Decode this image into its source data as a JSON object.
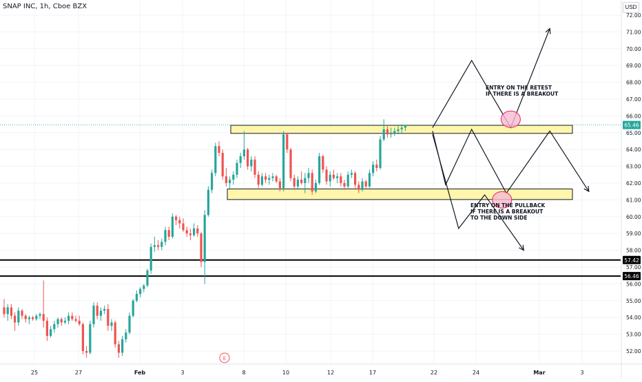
{
  "header": {
    "symbol_title": "SNAP INC, 1h, Cboe BZX",
    "currency": "USD"
  },
  "chart_data": {
    "type": "candlestick",
    "y_axis": {
      "ticks": [
        "72.00",
        "71.00",
        "70.00",
        "69.00",
        "68.00",
        "67.00",
        "66.00",
        "65.00",
        "64.00",
        "63.00",
        "62.00",
        "61.00",
        "60.00",
        "59.00",
        "58.00",
        "57.00",
        "56.00",
        "55.00",
        "54.00",
        "53.00",
        "52.00"
      ],
      "range": [
        51.2,
        72.5
      ]
    },
    "x_axis": {
      "ticks": [
        {
          "label": "25",
          "bold": false
        },
        {
          "label": "27",
          "bold": false
        },
        {
          "label": "Feb",
          "bold": true
        },
        {
          "label": "3",
          "bold": false
        },
        {
          "label": "8",
          "bold": false
        },
        {
          "label": "10",
          "bold": false
        },
        {
          "label": "12",
          "bold": false
        },
        {
          "label": "17",
          "bold": false
        },
        {
          "label": "22",
          "bold": false
        },
        {
          "label": "24",
          "bold": false
        },
        {
          "label": "Mar",
          "bold": true
        },
        {
          "label": "3",
          "bold": false
        }
      ]
    },
    "price_labels": [
      {
        "value": "65.46",
        "price": 65.46,
        "color": "#26a69a",
        "style": "dotted"
      },
      {
        "value": "57.42",
        "price": 57.42,
        "color": "#000000",
        "style": "solid"
      },
      {
        "value": "56.46",
        "price": 56.46,
        "color": "#000000",
        "style": "solid"
      }
    ],
    "zones": [
      {
        "from": 64.96,
        "to": 65.44,
        "fill": "#fff59d"
      },
      {
        "from": 61.02,
        "to": 61.65,
        "fill": "#fff59d"
      }
    ],
    "event_marker": "E",
    "annotations": [
      "ENTRY ON THE RETEST\nIF THERE IS A BREAKOUT",
      "ENTRY ON THE PULLBACK\nIF THERE IS A BREAKOUT\nTO THE DOWN SIDE"
    ],
    "projection_paths": [
      [
        [
          64.9,
          65.3
        ],
        [
          65.8,
          69.3
        ],
        [
          66.7,
          65.3
        ],
        [
          67.6,
          71.2
        ]
      ],
      [
        [
          64.9,
          65.1
        ],
        [
          65.2,
          61.9
        ],
        [
          65.8,
          65.2
        ],
        [
          66.6,
          61.4
        ],
        [
          67.6,
          65.1
        ],
        [
          68.5,
          61.5
        ]
      ],
      [
        [
          64.9,
          64.9
        ],
        [
          65.5,
          59.3
        ],
        [
          66.1,
          61.3
        ],
        [
          67.0,
          58.0
        ]
      ]
    ],
    "highlight_circles": [
      {
        "x": 66.7,
        "y": 65.8
      },
      {
        "x": 66.5,
        "y": 61.0
      }
    ],
    "candles": [
      [
        54.6,
        55.1,
        54.0,
        54.2
      ],
      [
        54.2,
        54.8,
        53.8,
        54.6
      ],
      [
        54.6,
        54.8,
        53.9,
        54.1
      ],
      [
        54.1,
        54.3,
        53.2,
        53.7
      ],
      [
        53.7,
        54.6,
        53.5,
        54.4
      ],
      [
        54.4,
        54.5,
        53.9,
        54.1
      ],
      [
        54.1,
        54.2,
        53.7,
        53.9
      ],
      [
        53.9,
        54.1,
        53.6,
        54.0
      ],
      [
        54.0,
        54.1,
        53.8,
        53.9
      ],
      [
        53.9,
        54.2,
        53.8,
        54.1
      ],
      [
        54.1,
        54.3,
        53.9,
        54.2
      ],
      [
        54.2,
        56.2,
        53.4,
        53.8
      ],
      [
        53.8,
        54.0,
        52.6,
        52.9
      ],
      [
        52.9,
        53.5,
        52.8,
        53.3
      ],
      [
        53.3,
        53.8,
        53.1,
        53.6
      ],
      [
        53.6,
        54.0,
        53.4,
        53.9
      ],
      [
        53.9,
        54.0,
        53.5,
        53.7
      ],
      [
        53.7,
        54.0,
        53.6,
        53.8
      ],
      [
        53.8,
        54.3,
        53.6,
        54.1
      ],
      [
        54.1,
        54.3,
        53.8,
        53.9
      ],
      [
        53.9,
        54.1,
        53.7,
        53.8
      ],
      [
        53.8,
        54.1,
        53.5,
        53.6
      ],
      [
        53.6,
        53.7,
        51.8,
        52.0
      ],
      [
        52.0,
        52.3,
        51.6,
        51.9
      ],
      [
        51.9,
        53.8,
        51.8,
        53.6
      ],
      [
        53.6,
        54.9,
        53.4,
        54.7
      ],
      [
        54.7,
        54.9,
        53.9,
        54.1
      ],
      [
        54.1,
        54.6,
        53.8,
        54.4
      ],
      [
        54.4,
        54.7,
        54.2,
        54.5
      ],
      [
        54.5,
        54.8,
        53.2,
        53.5
      ],
      [
        53.5,
        53.9,
        53.2,
        53.7
      ],
      [
        53.7,
        53.8,
        52.2,
        52.4
      ],
      [
        52.4,
        52.6,
        51.6,
        51.9
      ],
      [
        51.9,
        52.9,
        51.7,
        52.7
      ],
      [
        52.7,
        53.3,
        52.5,
        53.1
      ],
      [
        53.1,
        54.3,
        53.0,
        54.1
      ],
      [
        54.1,
        55.1,
        54.0,
        55.0
      ],
      [
        55.0,
        55.6,
        54.9,
        55.4
      ],
      [
        55.4,
        55.8,
        55.2,
        55.7
      ],
      [
        55.7,
        56.0,
        55.5,
        55.9
      ],
      [
        55.9,
        56.9,
        55.8,
        56.8
      ],
      [
        56.8,
        58.4,
        56.6,
        58.2
      ],
      [
        58.2,
        58.8,
        57.9,
        58.3
      ],
      [
        58.3,
        58.6,
        58.0,
        58.2
      ],
      [
        58.2,
        58.7,
        58.0,
        58.5
      ],
      [
        58.5,
        59.4,
        58.3,
        59.2
      ],
      [
        59.2,
        59.4,
        58.6,
        58.8
      ],
      [
        58.8,
        60.2,
        58.7,
        60.0
      ],
      [
        60.0,
        60.1,
        59.5,
        59.8
      ],
      [
        59.8,
        60.0,
        59.3,
        59.6
      ],
      [
        59.6,
        59.9,
        59.1,
        59.2
      ],
      [
        59.2,
        59.4,
        58.8,
        59.0
      ],
      [
        59.0,
        59.3,
        58.6,
        58.9
      ],
      [
        58.9,
        59.6,
        58.8,
        59.3
      ],
      [
        59.3,
        59.5,
        58.8,
        59.0
      ],
      [
        59.0,
        59.1,
        57.0,
        57.3
      ],
      [
        57.3,
        60.4,
        56.0,
        60.1
      ],
      [
        60.1,
        61.8,
        60.0,
        61.6
      ],
      [
        61.6,
        62.8,
        61.4,
        62.6
      ],
      [
        62.6,
        64.4,
        62.4,
        64.2
      ],
      [
        64.2,
        64.5,
        63.6,
        63.8
      ],
      [
        63.8,
        64.0,
        62.2,
        62.4
      ],
      [
        62.4,
        62.9,
        61.8,
        62.0
      ],
      [
        62.0,
        62.4,
        61.6,
        62.2
      ],
      [
        62.2,
        62.7,
        61.9,
        62.5
      ],
      [
        62.5,
        63.4,
        62.3,
        63.2
      ],
      [
        63.2,
        63.8,
        62.9,
        63.6
      ],
      [
        63.6,
        65.1,
        63.4,
        64.0
      ],
      [
        64.0,
        64.1,
        62.8,
        63.0
      ],
      [
        63.0,
        63.6,
        62.7,
        63.4
      ],
      [
        63.4,
        63.6,
        62.3,
        62.5
      ],
      [
        62.5,
        62.7,
        61.7,
        61.9
      ],
      [
        61.9,
        62.6,
        61.8,
        62.4
      ],
      [
        62.4,
        62.6,
        62.0,
        62.2
      ],
      [
        62.2,
        62.5,
        61.9,
        62.3
      ],
      [
        62.3,
        62.6,
        62.1,
        62.4
      ],
      [
        62.4,
        62.5,
        62.0,
        62.1
      ],
      [
        62.1,
        62.3,
        61.5,
        61.7
      ],
      [
        61.7,
        65.1,
        61.5,
        64.9
      ],
      [
        64.9,
        65.0,
        63.8,
        64.0
      ],
      [
        64.0,
        64.1,
        62.1,
        62.3
      ],
      [
        62.3,
        62.5,
        61.6,
        61.8
      ],
      [
        61.8,
        62.4,
        61.6,
        62.2
      ],
      [
        62.2,
        62.7,
        61.9,
        62.0
      ],
      [
        62.0,
        62.6,
        61.4,
        62.3
      ],
      [
        62.3,
        62.9,
        62.0,
        62.6
      ],
      [
        62.6,
        62.8,
        61.3,
        61.5
      ],
      [
        61.5,
        62.2,
        61.4,
        62.0
      ],
      [
        62.0,
        63.8,
        61.9,
        63.6
      ],
      [
        63.6,
        63.7,
        62.6,
        62.8
      ],
      [
        62.8,
        63.0,
        61.9,
        62.1
      ],
      [
        62.1,
        62.7,
        61.8,
        62.5
      ],
      [
        62.5,
        62.8,
        62.2,
        62.3
      ],
      [
        62.3,
        62.6,
        62.0,
        62.4
      ],
      [
        62.4,
        62.6,
        61.8,
        62.0
      ],
      [
        62.0,
        62.2,
        61.6,
        61.8
      ],
      [
        61.8,
        62.7,
        61.7,
        62.5
      ],
      [
        62.5,
        62.8,
        62.3,
        62.6
      ],
      [
        62.6,
        62.7,
        61.7,
        61.9
      ],
      [
        61.9,
        62.1,
        61.4,
        61.6
      ],
      [
        61.6,
        62.3,
        61.5,
        62.1
      ],
      [
        62.1,
        62.2,
        61.7,
        61.8
      ],
      [
        61.8,
        62.8,
        61.7,
        62.6
      ],
      [
        62.6,
        63.3,
        62.4,
        63.1
      ],
      [
        63.1,
        63.4,
        62.7,
        62.9
      ],
      [
        62.9,
        64.8,
        62.8,
        64.6
      ],
      [
        64.6,
        65.8,
        64.5,
        65.2
      ],
      [
        65.2,
        65.4,
        64.7,
        64.9
      ],
      [
        64.9,
        65.3,
        64.7,
        65.0
      ],
      [
        65.0,
        65.3,
        64.8,
        65.1
      ],
      [
        65.1,
        65.4,
        64.9,
        65.2
      ],
      [
        65.2,
        65.5,
        65.0,
        65.3
      ],
      [
        65.3,
        65.5,
        65.1,
        65.46
      ]
    ]
  }
}
